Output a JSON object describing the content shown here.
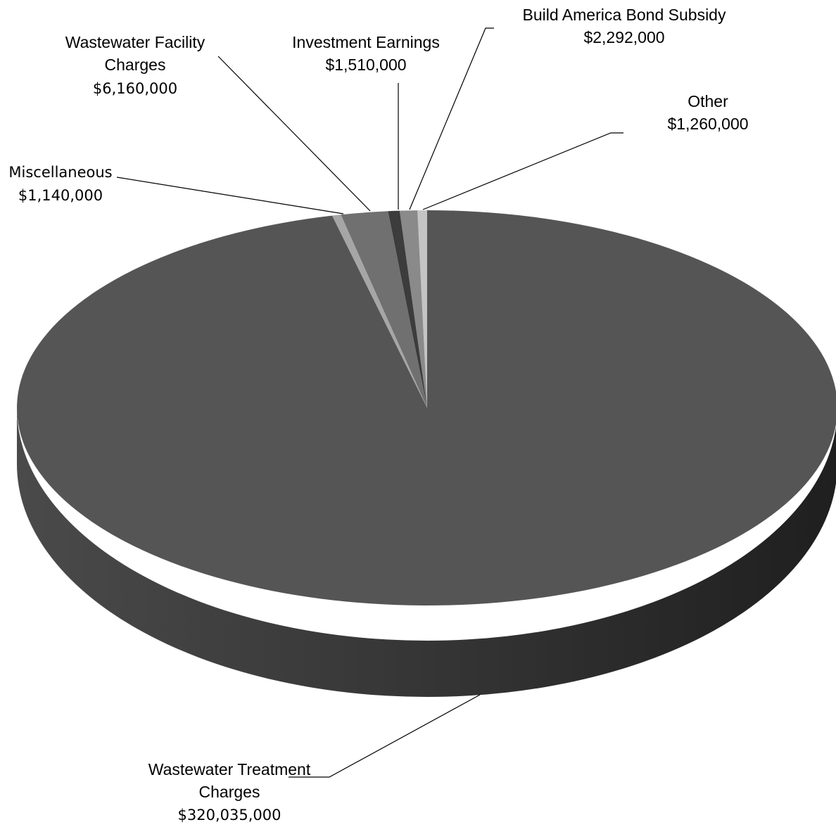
{
  "chart_data": {
    "type": "pie",
    "style": "3d",
    "slices": [
      {
        "key": "treatment",
        "label": "Wastewater Treatment Charges",
        "label_lines": [
          "Wastewater Treatment",
          "Charges"
        ],
        "value_label": "$320,035,000",
        "value": 320035000,
        "color": "#555555"
      },
      {
        "key": "misc",
        "label": "Miscellaneous",
        "label_lines": [
          "Miscellaneous"
        ],
        "value_label": "$1,140,000",
        "value": 1140000,
        "color": "#a6a6a6"
      },
      {
        "key": "facility",
        "label": "Wastewater Facility Charges",
        "label_lines": [
          "Wastewater Facility",
          "Charges"
        ],
        "value_label": "$6,160,000",
        "value": 6160000,
        "color": "#707070"
      },
      {
        "key": "invest",
        "label": "Investment Earnings",
        "label_lines": [
          "Investment Earnings"
        ],
        "value_label": "$1,510,000",
        "value": 1510000,
        "color": "#3c3c3c"
      },
      {
        "key": "bond",
        "label": "Build America Bond Subsidy",
        "label_lines": [
          "Build America Bond Subsidy"
        ],
        "value_label": "$2,292,000",
        "value": 2292000,
        "color": "#8a8a8a"
      },
      {
        "key": "other",
        "label": "Other",
        "label_lines": [
          "Other"
        ],
        "value_label": "$1,260,000",
        "value": 1260000,
        "color": "#c4c4c4"
      }
    ]
  }
}
